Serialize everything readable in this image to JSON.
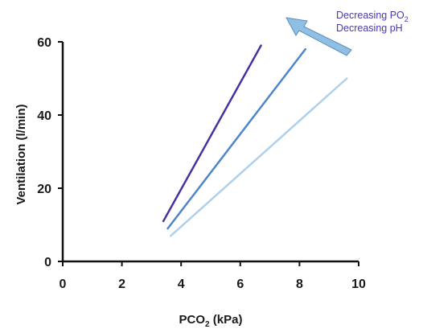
{
  "chart_data": {
    "type": "line",
    "xlabel": "PCO",
    "xlabel_sub": "2",
    "xlabel_unit": " (kPa)",
    "ylabel": "Ventilation  (l/min)",
    "xlim": [
      0,
      10
    ],
    "ylim": [
      0,
      60
    ],
    "x_ticks": [
      "0",
      "2",
      "4",
      "6",
      "8",
      "10"
    ],
    "y_ticks": [
      "0",
      "20",
      "40",
      "60"
    ],
    "grid": false,
    "series": [
      {
        "color": "#4a2fa0",
        "points": [
          [
            3.4,
            11
          ],
          [
            6.7,
            59
          ]
        ]
      },
      {
        "color": "#4f86c9",
        "points": [
          [
            3.55,
            9
          ],
          [
            8.2,
            58
          ]
        ]
      },
      {
        "color": "#aed0ea",
        "points": [
          [
            3.65,
            7
          ],
          [
            9.6,
            50
          ]
        ]
      }
    ],
    "annotation": {
      "line1": "Decreasing PO",
      "line1_sub": "2",
      "line2": "Decreasing pH",
      "arrow_color": "#8fbfe3",
      "arrow_outline": "#5b8fbf"
    }
  }
}
